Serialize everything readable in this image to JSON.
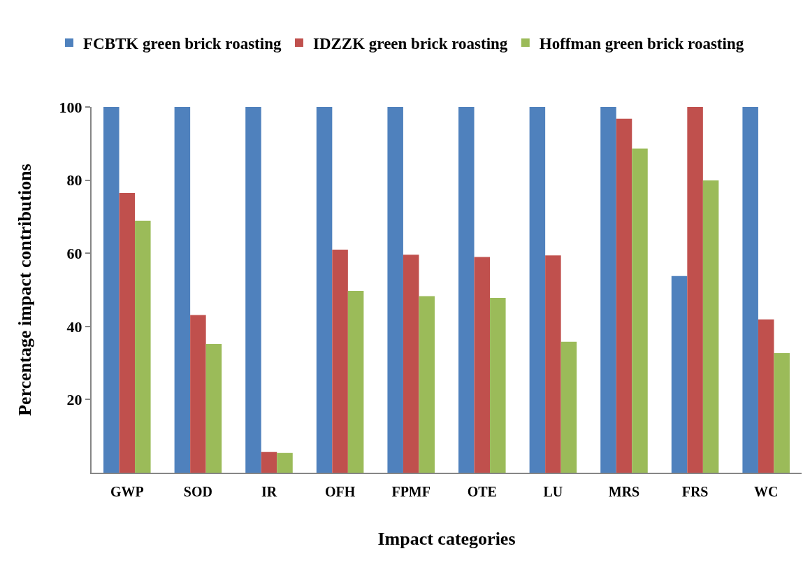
{
  "chart_data": {
    "type": "bar",
    "xlabel": "Impact categories",
    "ylabel": "Percentage impact contributions",
    "categories": [
      "GWP",
      "SOD",
      "IR",
      "OFH",
      "FPMF",
      "OTE",
      "LU",
      "MRS",
      "FRS",
      "WC"
    ],
    "series": [
      {
        "name": "FCBTK green brick roasting",
        "color": "#4f81bd",
        "values": [
          100,
          100,
          100,
          100,
          100,
          100,
          100,
          100,
          53.8,
          100
        ]
      },
      {
        "name": "IDZZK green brick roasting",
        "color": "#c0504d",
        "values": [
          76.5,
          43.1,
          5.7,
          61.0,
          59.6,
          59.0,
          59.4,
          96.8,
          100,
          41.9
        ]
      },
      {
        "name": "Hoffman green brick roasting",
        "color": "#9bbb59",
        "values": [
          68.9,
          35.2,
          5.4,
          49.7,
          48.3,
          47.8,
          35.8,
          88.6,
          79.9,
          32.7
        ]
      }
    ],
    "ylim": [
      0,
      100
    ],
    "yticks": [
      20,
      40,
      60,
      80,
      100
    ],
    "legend": "top"
  }
}
